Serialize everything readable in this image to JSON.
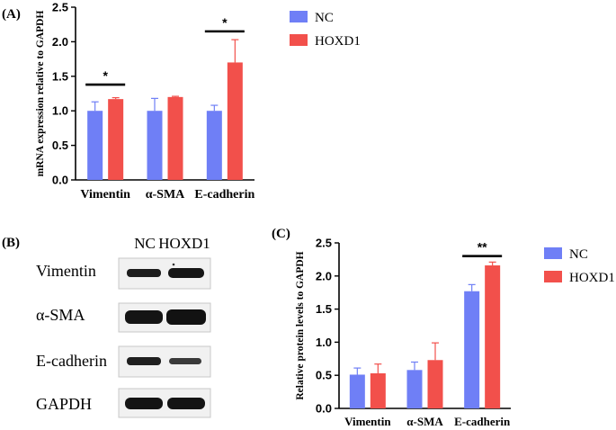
{
  "panels": {
    "a": {
      "label": "(A)"
    },
    "b": {
      "label": "(B)"
    },
    "c": {
      "label": "(C)"
    }
  },
  "colors": {
    "nc": "#6f7ff6",
    "hoxd1": "#f2504b",
    "band": "#1a1a1a",
    "blot_bg": "#f2f2f2"
  },
  "blot": {
    "headers": [
      "NC",
      "HOXD1"
    ],
    "rows": [
      "Vimentin",
      "α-SMA",
      "E-cadherin",
      "GAPDH"
    ]
  },
  "chart_data": [
    {
      "type": "bar",
      "panel": "A",
      "ylabel": "mRNA expression relative to GAPDH",
      "xlabel": "",
      "categories": [
        "Vimentin",
        "α-SMA",
        "E-cadherin"
      ],
      "series": [
        {
          "name": "NC",
          "color": "#6f7ff6",
          "values": [
            1.0,
            1.0,
            1.0
          ],
          "errors": [
            0.13,
            0.18,
            0.08
          ]
        },
        {
          "name": "HOXD1",
          "color": "#f2504b",
          "values": [
            1.17,
            1.2,
            1.7
          ],
          "errors": [
            0.02,
            0.01,
            0.33
          ]
        }
      ],
      "ylim": [
        0,
        2.5
      ],
      "yticks": [
        "0.0",
        "0.5",
        "1.0",
        "1.5",
        "2.0",
        "2.5"
      ],
      "ytick_values": [
        0,
        0.5,
        1.0,
        1.5,
        2.0,
        2.5
      ],
      "significance": [
        {
          "category": 0,
          "label": "*",
          "level": 1.38
        },
        {
          "category": 2,
          "label": "*",
          "level": 2.15
        }
      ],
      "legend": {
        "placement": "top-right",
        "entries": [
          "NC",
          "HOXD1"
        ]
      }
    },
    {
      "type": "bar",
      "panel": "C",
      "ylabel": "Relative protein levels to GAPDH",
      "xlabel": "",
      "categories": [
        "Vimentin",
        "α-SMA",
        "E-cadherin"
      ],
      "series": [
        {
          "name": "NC",
          "color": "#6f7ff6",
          "values": [
            0.51,
            0.58,
            1.77
          ],
          "errors": [
            0.1,
            0.12,
            0.1
          ]
        },
        {
          "name": "HOXD1",
          "color": "#f2504b",
          "values": [
            0.53,
            0.73,
            2.16
          ],
          "errors": [
            0.14,
            0.26,
            0.05
          ]
        }
      ],
      "ylim": [
        0,
        2.5
      ],
      "yticks": [
        "0.0",
        "0.5",
        "1.0",
        "1.5",
        "2.0",
        "2.5"
      ],
      "ytick_values": [
        0,
        0.5,
        1.0,
        1.5,
        2.0,
        2.5
      ],
      "significance": [
        {
          "category": 2,
          "label": "**",
          "level": 2.3
        }
      ],
      "legend": {
        "placement": "top-right",
        "entries": [
          "NC",
          "HOXD1"
        ]
      }
    }
  ]
}
